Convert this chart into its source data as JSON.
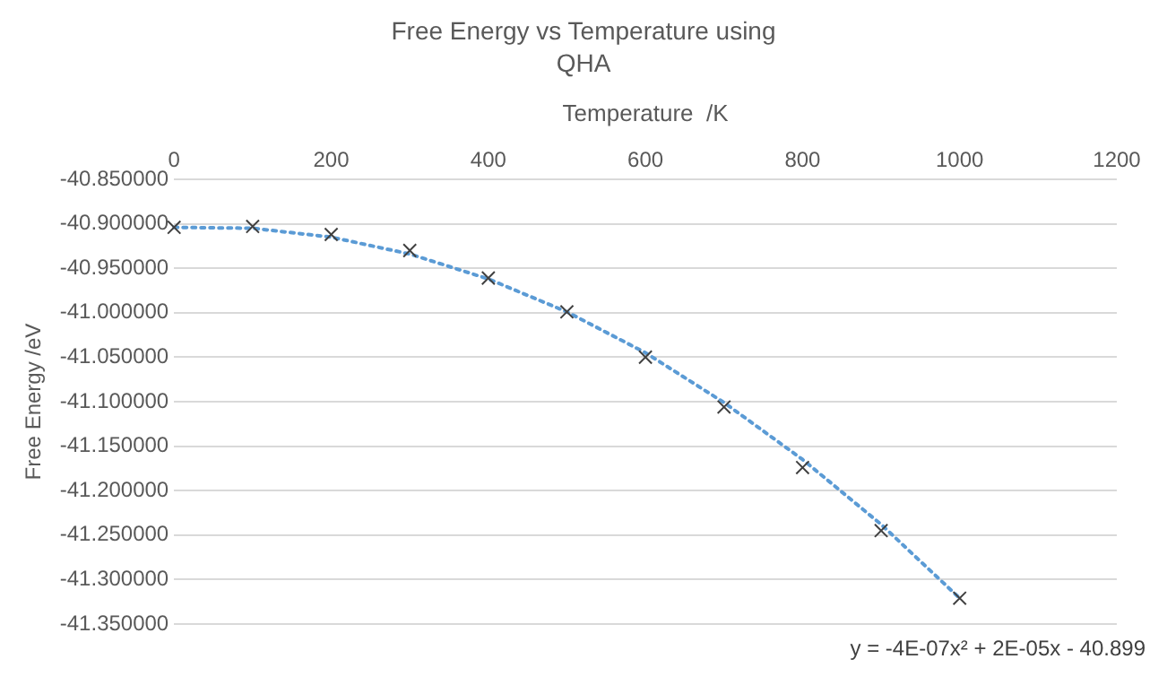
{
  "chart_data": {
    "type": "scatter",
    "title": "Free Energy vs Temperature using QHA",
    "xlabel": "Temperature  /K",
    "ylabel": "Free Energy /eV",
    "series": [
      {
        "color": "#404040",
        "x": [
          0,
          100,
          200,
          300,
          400,
          500,
          600,
          700,
          800,
          900,
          1000
        ],
        "values": [
          -40.904,
          -40.903,
          -40.912,
          -40.93,
          -40.961,
          -40.999,
          -41.05,
          -41.106,
          -41.174,
          -41.245,
          -41.321
        ],
        "marker": "cross"
      },
      {
        "type": "line",
        "color": "#5b9bd5",
        "line_style": "dotted",
        "marker": "none",
        "x": [
          0,
          100,
          200,
          300,
          400,
          500,
          600,
          700,
          800,
          900,
          1000
        ],
        "values": [
          -40.904,
          -40.905,
          -40.915,
          -40.934,
          -40.962,
          -40.999,
          -41.045,
          -41.101,
          -41.165,
          -41.238,
          -41.321
        ]
      }
    ],
    "xlim": [
      0,
      1200
    ],
    "xticks": [
      0,
      200,
      400,
      600,
      800,
      1000,
      1200
    ],
    "ylim": [
      -41.35,
      -40.85
    ],
    "yticks": [
      {
        "value": -41.35,
        "label": "-41.350000"
      },
      {
        "value": -41.3,
        "label": "-41.300000"
      },
      {
        "value": -41.25,
        "label": "-41.250000"
      },
      {
        "value": -41.2,
        "label": "-41.200000"
      },
      {
        "value": -41.15,
        "label": "-41.150000"
      },
      {
        "value": -41.1,
        "label": "-41.100000"
      },
      {
        "value": -41.05,
        "label": "-41.050000"
      },
      {
        "value": -41.0,
        "label": "-41.000000"
      },
      {
        "value": -40.95,
        "label": "-40.950000"
      },
      {
        "value": -40.9,
        "label": "-40.900000"
      },
      {
        "value": -40.85,
        "label": "-40.850000"
      }
    ],
    "grid": "y",
    "legend": false,
    "annotations": [
      "y = -4E-07x² + 2E-05x - 40.899"
    ]
  }
}
